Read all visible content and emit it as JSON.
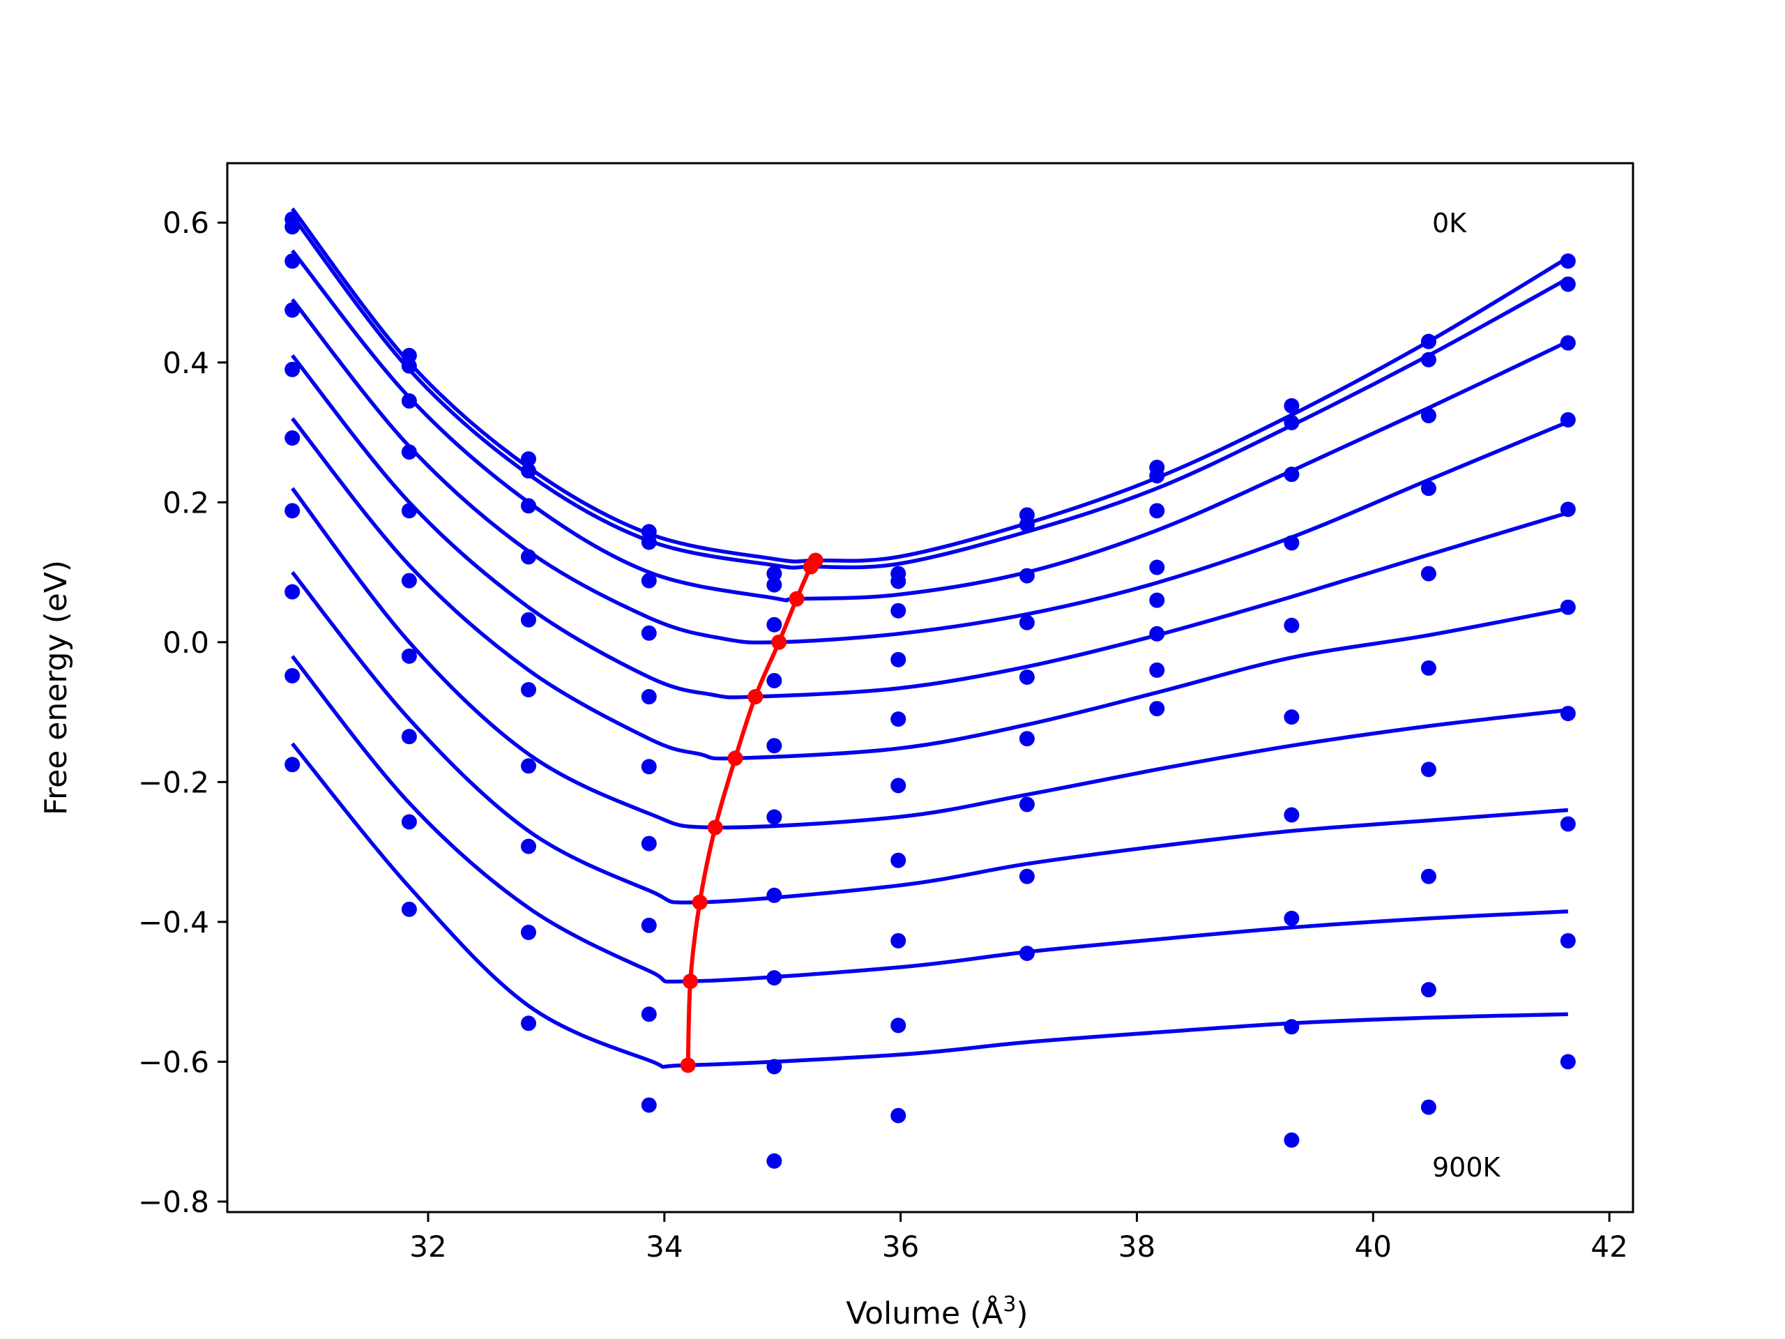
{
  "chart_data": {
    "type": "line",
    "xlabel": "Volume (Å",
    "xlabel_sup": "3",
    "xlabel_close": ")",
    "ylabel": "Free energy (eV)",
    "xlim": [
      30.3,
      42.2
    ],
    "ylim": [
      -0.815,
      0.685
    ],
    "xticks": [
      32,
      34,
      36,
      38,
      40,
      42
    ],
    "yticks": [
      -0.8,
      -0.6,
      -0.4,
      -0.2,
      0.0,
      0.2,
      0.4,
      0.6
    ],
    "ytick_labels": [
      "−0.8",
      "−0.6",
      "−0.4",
      "−0.2",
      "0.0",
      "0.2",
      "0.4",
      "0.6"
    ],
    "xtick_labels": [
      "32",
      "34",
      "36",
      "38",
      "40",
      "42"
    ],
    "grid": false,
    "annotations": [
      {
        "text": "0K",
        "x": 40.5,
        "y": 0.6
      },
      {
        "text": "900K",
        "x": 40.5,
        "y": -0.75
      }
    ],
    "colors": {
      "fit": "#0000ee",
      "points": "#0000ee",
      "minima": "#ff0000"
    },
    "volumes": [
      30.85,
      31.84,
      32.85,
      33.87,
      34.93,
      35.98,
      37.07,
      38.17,
      39.31,
      40.47,
      41.65
    ],
    "series": [
      {
        "points": [
          0.605,
          0.41,
          0.262,
          0.158,
          0.098,
          0.098,
          0.182,
          0.25,
          0.338,
          0.43,
          0.545
        ],
        "fit_minimum": [
          35.28,
          0.117
        ],
        "fit": [
          [
            30.85,
            0.62
          ],
          [
            31.84,
            0.4
          ],
          [
            32.85,
            0.25
          ],
          [
            33.87,
            0.155
          ],
          [
            34.93,
            0.119
          ],
          [
            35.28,
            0.117
          ],
          [
            35.98,
            0.122
          ],
          [
            37.07,
            0.17
          ],
          [
            38.17,
            0.235
          ],
          [
            39.31,
            0.325
          ],
          [
            40.47,
            0.43
          ],
          [
            41.65,
            0.55
          ]
        ]
      },
      {
        "points": [
          0.594,
          0.395,
          0.245,
          0.143,
          0.082,
          0.087,
          0.168,
          0.238,
          0.314,
          0.404,
          0.512
        ],
        "fit_minimum": [
          35.24,
          0.108
        ],
        "fit": [
          [
            30.85,
            0.61
          ],
          [
            31.84,
            0.39
          ],
          [
            32.85,
            0.24
          ],
          [
            33.87,
            0.145
          ],
          [
            34.93,
            0.11
          ],
          [
            35.24,
            0.108
          ],
          [
            35.98,
            0.112
          ],
          [
            37.07,
            0.158
          ],
          [
            38.17,
            0.22
          ],
          [
            39.31,
            0.31
          ],
          [
            40.47,
            0.41
          ],
          [
            41.65,
            0.52
          ]
        ]
      },
      {
        "points": [
          0.545,
          0.345,
          0.195,
          0.088,
          0.025,
          0.045,
          0.095,
          0.188,
          0.24,
          0.324,
          0.428
        ],
        "fit_minimum": [
          35.12,
          0.062
        ],
        "fit": [
          [
            30.85,
            0.56
          ],
          [
            31.84,
            0.35
          ],
          [
            32.85,
            0.2
          ],
          [
            33.87,
            0.1
          ],
          [
            34.93,
            0.063
          ],
          [
            35.12,
            0.062
          ],
          [
            35.98,
            0.068
          ],
          [
            37.07,
            0.1
          ],
          [
            38.17,
            0.16
          ],
          [
            39.31,
            0.245
          ],
          [
            40.47,
            0.335
          ],
          [
            41.65,
            0.43
          ]
        ]
      },
      {
        "points": [
          0.475,
          0.272,
          0.122,
          0.013,
          -0.055,
          -0.025,
          0.028,
          0.107,
          0.142,
          0.22,
          0.318
        ],
        "fit_minimum": [
          34.97,
          0.0
        ],
        "fit": [
          [
            30.85,
            0.49
          ],
          [
            31.84,
            0.28
          ],
          [
            32.85,
            0.13
          ],
          [
            33.87,
            0.035
          ],
          [
            34.5,
            0.005
          ],
          [
            34.97,
            0.0
          ],
          [
            35.98,
            0.012
          ],
          [
            37.07,
            0.04
          ],
          [
            38.17,
            0.085
          ],
          [
            39.31,
            0.15
          ],
          [
            40.47,
            0.232
          ],
          [
            41.65,
            0.315
          ]
        ]
      },
      {
        "points": [
          0.39,
          0.188,
          0.032,
          -0.078,
          -0.148,
          -0.11,
          -0.05,
          0.06,
          0.024,
          0.098,
          0.19
        ],
        "fit_minimum": [
          34.77,
          -0.078
        ],
        "fit": [
          [
            30.85,
            0.41
          ],
          [
            31.84,
            0.2
          ],
          [
            32.85,
            0.05
          ],
          [
            33.87,
            -0.05
          ],
          [
            34.4,
            -0.075
          ],
          [
            34.77,
            -0.078
          ],
          [
            35.98,
            -0.066
          ],
          [
            37.07,
            -0.035
          ],
          [
            38.17,
            0.01
          ],
          [
            39.31,
            0.065
          ],
          [
            40.47,
            0.125
          ],
          [
            41.65,
            0.185
          ]
        ]
      },
      {
        "points": [
          0.292,
          0.088,
          -0.068,
          -0.178,
          -0.25,
          -0.205,
          -0.138,
          0.012,
          -0.107,
          -0.037,
          0.05
        ],
        "fit_minimum": [
          34.6,
          -0.166
        ],
        "fit": [
          [
            30.85,
            0.32
          ],
          [
            31.84,
            0.11
          ],
          [
            32.85,
            -0.04
          ],
          [
            33.87,
            -0.138
          ],
          [
            34.3,
            -0.16
          ],
          [
            34.6,
            -0.166
          ],
          [
            35.98,
            -0.152
          ],
          [
            37.07,
            -0.118
          ],
          [
            38.17,
            -0.072
          ],
          [
            39.31,
            -0.022
          ],
          [
            40.47,
            0.01
          ],
          [
            41.65,
            0.048
          ]
        ]
      },
      {
        "points": [
          0.188,
          -0.02,
          -0.177,
          -0.288,
          -0.362,
          -0.312,
          -0.232,
          -0.04,
          -0.247,
          -0.182,
          -0.102
        ],
        "fit_minimum": [
          34.43,
          -0.265
        ],
        "fit": [
          [
            30.85,
            0.22
          ],
          [
            31.84,
            0.0
          ],
          [
            32.85,
            -0.16
          ],
          [
            33.87,
            -0.245
          ],
          [
            34.43,
            -0.265
          ],
          [
            35.98,
            -0.25
          ],
          [
            37.07,
            -0.218
          ],
          [
            38.17,
            -0.182
          ],
          [
            39.31,
            -0.148
          ],
          [
            40.47,
            -0.12
          ],
          [
            41.65,
            -0.097
          ]
        ]
      },
      {
        "points": [
          0.072,
          -0.135,
          -0.292,
          -0.405,
          -0.48,
          -0.427,
          -0.335,
          -0.095,
          -0.395,
          -0.335,
          -0.26
        ],
        "fit_minimum": [
          34.3,
          -0.372
        ],
        "fit": [
          [
            30.85,
            0.1
          ],
          [
            31.84,
            -0.11
          ],
          [
            32.85,
            -0.27
          ],
          [
            33.87,
            -0.355
          ],
          [
            34.3,
            -0.372
          ],
          [
            35.98,
            -0.348
          ],
          [
            37.07,
            -0.317
          ],
          [
            38.17,
            -0.292
          ],
          [
            39.31,
            -0.27
          ],
          [
            40.47,
            -0.255
          ],
          [
            41.65,
            -0.24
          ]
        ]
      },
      {
        "points": [
          -0.048,
          -0.257,
          -0.415,
          -0.532,
          -0.607,
          -0.548,
          -0.445,
          null,
          -0.55,
          -0.497,
          -0.427
        ],
        "fit_minimum": [
          34.22,
          -0.485
        ],
        "fit": [
          [
            30.85,
            -0.02
          ],
          [
            31.84,
            -0.23
          ],
          [
            32.85,
            -0.38
          ],
          [
            33.87,
            -0.47
          ],
          [
            34.22,
            -0.485
          ],
          [
            35.98,
            -0.465
          ],
          [
            37.07,
            -0.443
          ],
          [
            38.17,
            -0.425
          ],
          [
            39.31,
            -0.408
          ],
          [
            40.47,
            -0.395
          ],
          [
            41.65,
            -0.385
          ]
        ]
      },
      {
        "points": [
          -0.175,
          -0.382,
          -0.545,
          -0.662,
          -0.742,
          -0.677,
          null,
          null,
          -0.712,
          -0.665,
          -0.6
        ],
        "fit_minimum": [
          34.2,
          -0.605
        ],
        "fit": [
          [
            30.85,
            -0.145
          ],
          [
            31.84,
            -0.35
          ],
          [
            32.85,
            -0.52
          ],
          [
            33.87,
            -0.598
          ],
          [
            34.2,
            -0.605
          ],
          [
            35.98,
            -0.59
          ],
          [
            37.07,
            -0.572
          ],
          [
            38.17,
            -0.558
          ],
          [
            39.31,
            -0.545
          ],
          [
            40.47,
            -0.537
          ],
          [
            41.65,
            -0.532
          ]
        ]
      }
    ],
    "minima_curve": {
      "x": [
        35.28,
        35.24,
        35.12,
        34.97,
        34.77,
        34.6,
        34.43,
        34.3,
        34.22,
        34.2
      ],
      "y": [
        0.117,
        0.108,
        0.062,
        0.0,
        -0.078,
        -0.166,
        -0.265,
        -0.372,
        -0.485,
        -0.605
      ]
    }
  }
}
